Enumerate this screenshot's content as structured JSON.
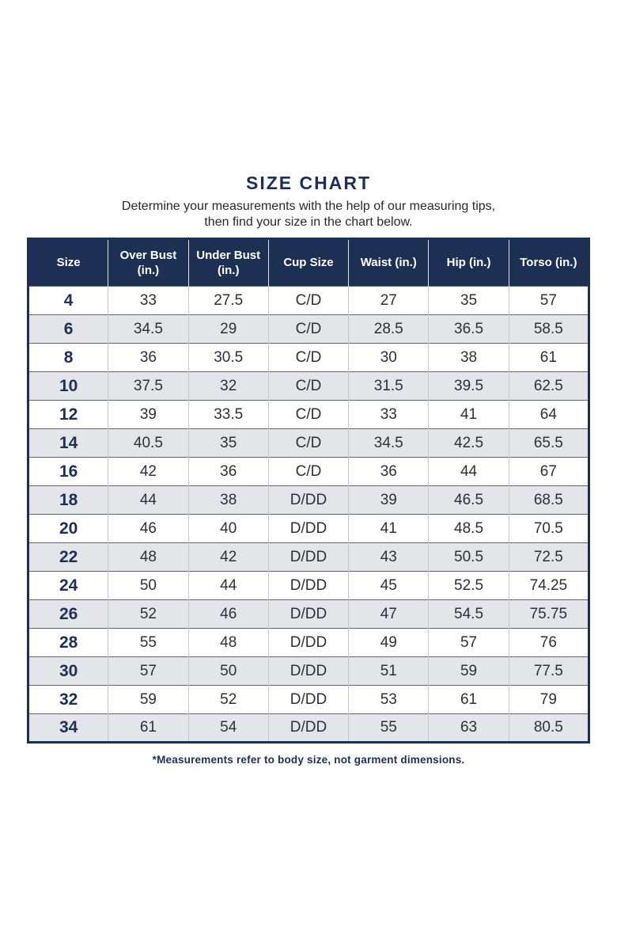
{
  "page": {
    "title": "SIZE CHART",
    "subtitle_line1": "Determine your measurements with the help of our measuring tips,",
    "subtitle_line2": "then find your size in the chart below.",
    "footnote": "*Measurements refer to body size, not garment dimensions."
  },
  "colors": {
    "navy": "#1e2f54",
    "header_text": "#ffffff",
    "stripe_row": "#e4e5e9",
    "body_text": "#2e3036",
    "row_border": "#5d6475",
    "column_border": "#c3c6cd"
  },
  "chart_data": {
    "type": "table",
    "title": "SIZE CHART",
    "columns": [
      "Size",
      "Over Bust (in.)",
      "Under Bust (in.)",
      "Cup Size",
      "Waist (in.)",
      "Hip (in.)",
      "Torso (in.)"
    ],
    "rows": [
      [
        "4",
        "33",
        "27.5",
        "C/D",
        "27",
        "35",
        "57"
      ],
      [
        "6",
        "34.5",
        "29",
        "C/D",
        "28.5",
        "36.5",
        "58.5"
      ],
      [
        "8",
        "36",
        "30.5",
        "C/D",
        "30",
        "38",
        "61"
      ],
      [
        "10",
        "37.5",
        "32",
        "C/D",
        "31.5",
        "39.5",
        "62.5"
      ],
      [
        "12",
        "39",
        "33.5",
        "C/D",
        "33",
        "41",
        "64"
      ],
      [
        "14",
        "40.5",
        "35",
        "C/D",
        "34.5",
        "42.5",
        "65.5"
      ],
      [
        "16",
        "42",
        "36",
        "C/D",
        "36",
        "44",
        "67"
      ],
      [
        "18",
        "44",
        "38",
        "D/DD",
        "39",
        "46.5",
        "68.5"
      ],
      [
        "20",
        "46",
        "40",
        "D/DD",
        "41",
        "48.5",
        "70.5"
      ],
      [
        "22",
        "48",
        "42",
        "D/DD",
        "43",
        "50.5",
        "72.5"
      ],
      [
        "24",
        "50",
        "44",
        "D/DD",
        "45",
        "52.5",
        "74.25"
      ],
      [
        "26",
        "52",
        "46",
        "D/DD",
        "47",
        "54.5",
        "75.75"
      ],
      [
        "28",
        "55",
        "48",
        "D/DD",
        "49",
        "57",
        "76"
      ],
      [
        "30",
        "57",
        "50",
        "D/DD",
        "51",
        "59",
        "77.5"
      ],
      [
        "32",
        "59",
        "52",
        "D/DD",
        "53",
        "61",
        "79"
      ],
      [
        "34",
        "61",
        "54",
        "D/DD",
        "55",
        "63",
        "80.5"
      ]
    ],
    "layout": {
      "striped": true,
      "stripe_start": "row 2",
      "header_position": "top"
    }
  }
}
